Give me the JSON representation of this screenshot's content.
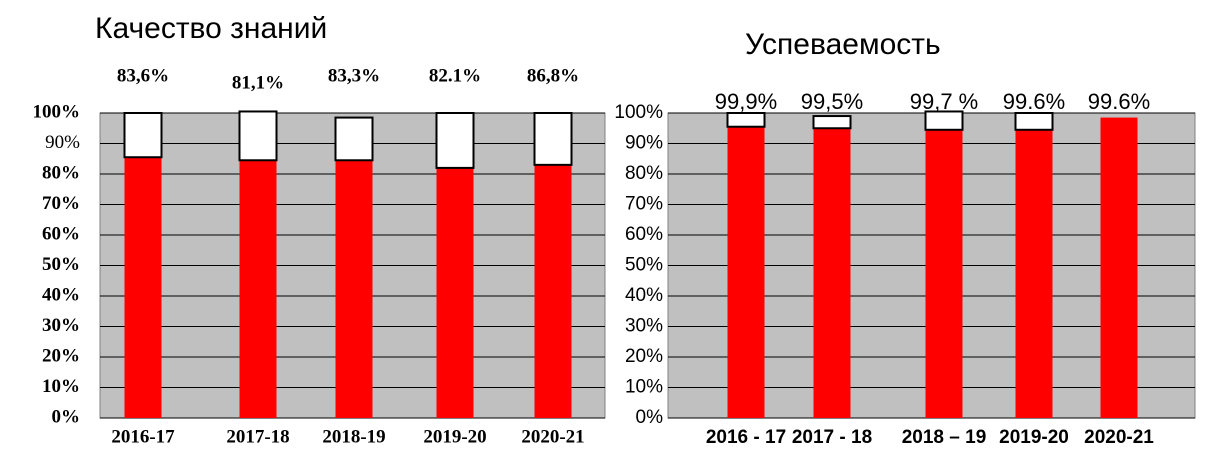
{
  "chart_data": [
    {
      "type": "stacked_bar",
      "title": "Качество знаний",
      "categories": [
        "2016-17",
        "2017-18",
        "2018-19",
        "2019-20",
        "2020-21"
      ],
      "series": [
        {
          "color": "#ff0000",
          "values": [
            85.5,
            84.5,
            84.5,
            82,
            83
          ]
        },
        {
          "color": "#ffffff",
          "values": [
            14.5,
            16,
            14,
            18,
            17
          ]
        }
      ],
      "annotations": [
        "83,6%",
        "81,1%",
        "83,3%",
        "82.1%",
        "86,8%"
      ],
      "ylim": [
        0,
        100
      ],
      "yticks": [
        {
          "value": 0,
          "label": "0%"
        },
        {
          "value": 10,
          "label": "10%"
        },
        {
          "value": 20,
          "label": "20%"
        },
        {
          "value": 30,
          "label": "30%"
        },
        {
          "value": 40,
          "label": "40%"
        },
        {
          "value": 50,
          "label": "50%"
        },
        {
          "value": 60,
          "label": "60%"
        },
        {
          "value": 70,
          "label": "70%"
        },
        {
          "value": 80,
          "label": "80%"
        },
        {
          "value": 90,
          "label": "90%"
        },
        {
          "value": 100,
          "label": "100%"
        }
      ],
      "grid": true,
      "background": "#c0c0c0"
    },
    {
      "type": "stacked_bar",
      "title": "Успеваемость",
      "categories": [
        "2016 - 17",
        "2017 - 18",
        "2018 – 19",
        "2019-20",
        "2020-21"
      ],
      "series": [
        {
          "color": "#ff0000",
          "values": [
            95.5,
            95,
            94.5,
            94.5,
            98.5
          ]
        },
        {
          "color": "#ffffff",
          "values": [
            4.5,
            4,
            6,
            5.5,
            0
          ]
        }
      ],
      "annotations": [
        "99,9%",
        "99,5%",
        "99,7 %",
        "99.6%",
        "99.6%"
      ],
      "ylim": [
        0,
        100
      ],
      "yticks": [
        {
          "value": 0,
          "label": "0%"
        },
        {
          "value": 10,
          "label": "10%"
        },
        {
          "value": 20,
          "label": "20%"
        },
        {
          "value": 30,
          "label": "30%"
        },
        {
          "value": 40,
          "label": "40%"
        },
        {
          "value": 50,
          "label": "50%"
        },
        {
          "value": 60,
          "label": "60%"
        },
        {
          "value": 70,
          "label": "70%"
        },
        {
          "value": 80,
          "label": "80%"
        },
        {
          "value": 90,
          "label": "90%"
        },
        {
          "value": 100,
          "label": "100%"
        }
      ],
      "grid": true,
      "background": "#c0c0c0"
    }
  ]
}
